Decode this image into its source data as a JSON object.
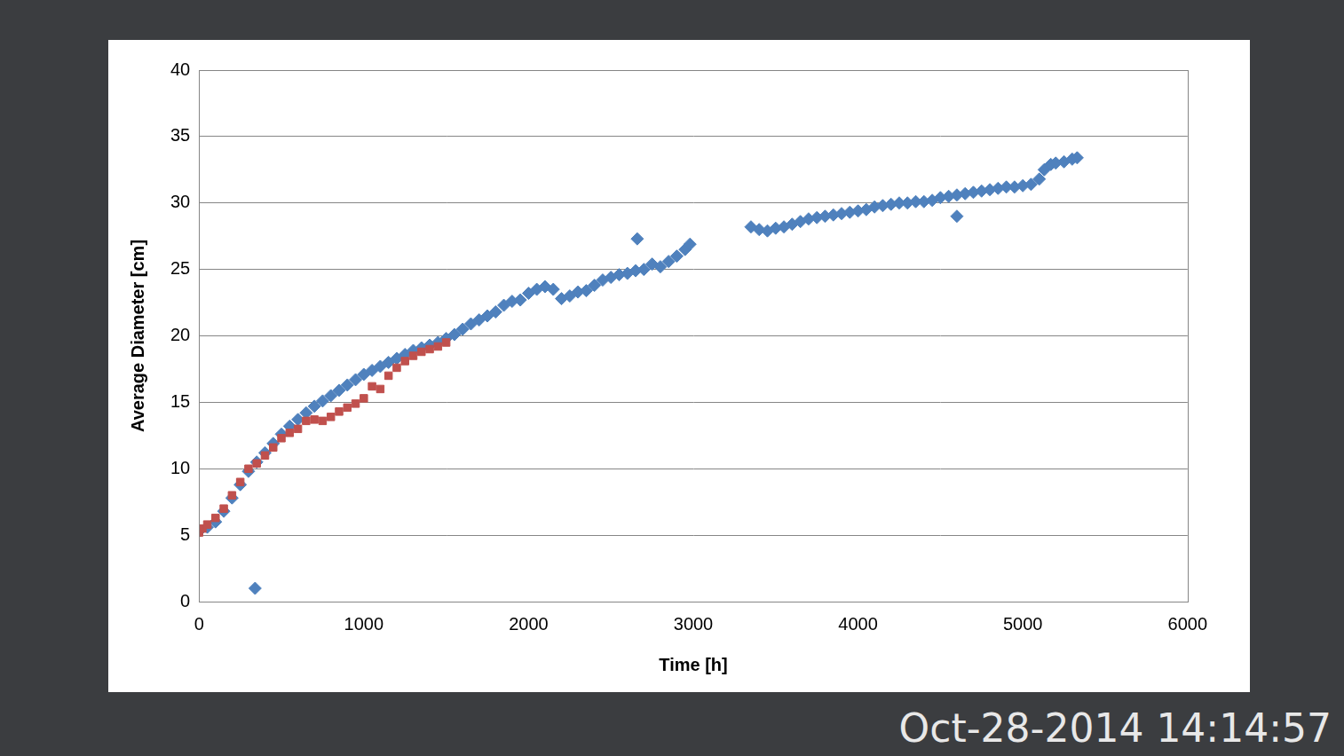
{
  "chart_data": {
    "type": "scatter",
    "x_label": "Time [h]",
    "y_label": "Average Diameter [cm]",
    "annotation": "Oct-28-2014 14:14:57",
    "xlim": [
      0,
      6000
    ],
    "xticks": [
      0,
      1000,
      2000,
      3000,
      4000,
      5000,
      6000
    ],
    "ylim": [
      0,
      40
    ],
    "yticks": [
      0,
      5,
      10,
      15,
      20,
      25,
      30,
      35,
      40
    ],
    "grid": true,
    "series": [
      {
        "color": "#4f81bd",
        "marker": "diamond",
        "x": [
          0,
          50,
          100,
          150,
          200,
          250,
          300,
          340,
          350,
          400,
          450,
          500,
          550,
          600,
          650,
          700,
          750,
          800,
          850,
          900,
          950,
          1000,
          1050,
          1100,
          1150,
          1200,
          1250,
          1300,
          1350,
          1400,
          1450,
          1500,
          1550,
          1600,
          1650,
          1700,
          1750,
          1800,
          1850,
          1900,
          1950,
          2000,
          2050,
          2100,
          2150,
          2200,
          2250,
          2300,
          2350,
          2400,
          2450,
          2500,
          2550,
          2600,
          2650,
          2660,
          2700,
          2750,
          2800,
          2850,
          2900,
          2950,
          2980,
          3350,
          3400,
          3450,
          3500,
          3550,
          3600,
          3650,
          3700,
          3750,
          3800,
          3850,
          3900,
          3950,
          4000,
          4050,
          4100,
          4150,
          4200,
          4250,
          4300,
          4350,
          4400,
          4450,
          4500,
          4550,
          4600,
          4600,
          4650,
          4700,
          4750,
          4800,
          4850,
          4900,
          4950,
          5000,
          5050,
          5100,
          5130,
          5170,
          5200,
          5250,
          5300,
          5330
        ],
        "values": [
          5.3,
          5.6,
          6.0,
          6.8,
          7.8,
          8.8,
          9.8,
          1.0,
          10.5,
          11.2,
          11.9,
          12.6,
          13.2,
          13.7,
          14.2,
          14.7,
          15.1,
          15.5,
          15.9,
          16.3,
          16.7,
          17.1,
          17.4,
          17.7,
          18.0,
          18.3,
          18.6,
          18.9,
          19.1,
          19.3,
          19.5,
          19.8,
          20.1,
          20.5,
          20.9,
          21.2,
          21.5,
          21.8,
          22.3,
          22.6,
          22.7,
          23.2,
          23.5,
          23.7,
          23.5,
          22.8,
          23.0,
          23.3,
          23.4,
          23.8,
          24.2,
          24.4,
          24.6,
          24.7,
          24.9,
          27.3,
          25.0,
          25.4,
          25.2,
          25.6,
          26.0,
          26.5,
          26.9,
          28.2,
          28.0,
          27.9,
          28.1,
          28.2,
          28.4,
          28.6,
          28.8,
          28.9,
          29.0,
          29.1,
          29.2,
          29.3,
          29.4,
          29.5,
          29.7,
          29.8,
          29.9,
          30.0,
          30.0,
          30.1,
          30.1,
          30.2,
          30.4,
          30.5,
          30.6,
          29.0,
          30.7,
          30.8,
          30.9,
          31.0,
          31.1,
          31.2,
          31.2,
          31.3,
          31.4,
          31.8,
          32.5,
          32.9,
          33.0,
          33.1,
          33.3,
          33.4
        ]
      },
      {
        "color": "#c0504d",
        "marker": "square",
        "x": [
          0,
          20,
          50,
          100,
          150,
          200,
          250,
          300,
          350,
          400,
          450,
          500,
          550,
          600,
          650,
          700,
          750,
          800,
          850,
          900,
          950,
          1000,
          1050,
          1100,
          1150,
          1200,
          1250,
          1300,
          1350,
          1400,
          1450,
          1500
        ],
        "values": [
          5.2,
          5.5,
          5.8,
          6.3,
          7.0,
          8.0,
          9.0,
          10.0,
          10.4,
          11.0,
          11.6,
          12.3,
          12.7,
          13.0,
          13.6,
          13.7,
          13.6,
          13.9,
          14.3,
          14.6,
          14.9,
          15.3,
          16.2,
          16.0,
          17.0,
          17.6,
          18.1,
          18.5,
          18.8,
          19.0,
          19.2,
          19.5
        ]
      }
    ]
  }
}
